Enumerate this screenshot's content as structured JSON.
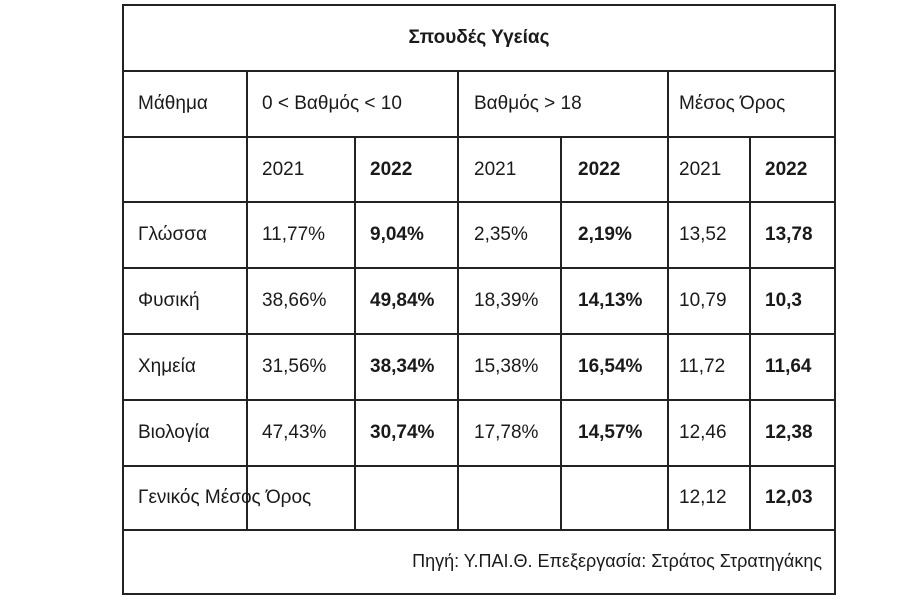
{
  "title": "Σπουδές Υγείας",
  "headers": {
    "subject": "Μάθημα",
    "group1": "0 < Βαθμός < 10",
    "group2": "Βαθμός > 18",
    "group3": "Μέσος Όρος"
  },
  "years": [
    "2021",
    "2022",
    "2021",
    "2022",
    "2021",
    "2022"
  ],
  "rows": [
    {
      "subject": "Γλώσσα",
      "values": [
        "11,77%",
        "9,04%",
        "2,35%",
        "2,19%",
        "13,52",
        "13,78"
      ]
    },
    {
      "subject": "Φυσική",
      "values": [
        "38,66%",
        "49,84%",
        "18,39%",
        "14,13%",
        "10,79",
        "10,3"
      ]
    },
    {
      "subject": "Χημεία",
      "values": [
        "31,56%",
        "38,34%",
        "15,38%",
        "16,54%",
        "11,72",
        "11,64"
      ]
    },
    {
      "subject": "Βιολογία",
      "values": [
        "47,43%",
        "30,74%",
        "17,78%",
        "14,57%",
        "12,46",
        "12,38"
      ]
    }
  ],
  "overall": {
    "label": "Γενικός Μέσος Όρος",
    "values": [
      "12,12",
      "12,03"
    ]
  },
  "source": "Πηγή: Υ.ΠΑΙ.Θ. Επεξεργασία: Στράτος Στρατηγάκης"
}
